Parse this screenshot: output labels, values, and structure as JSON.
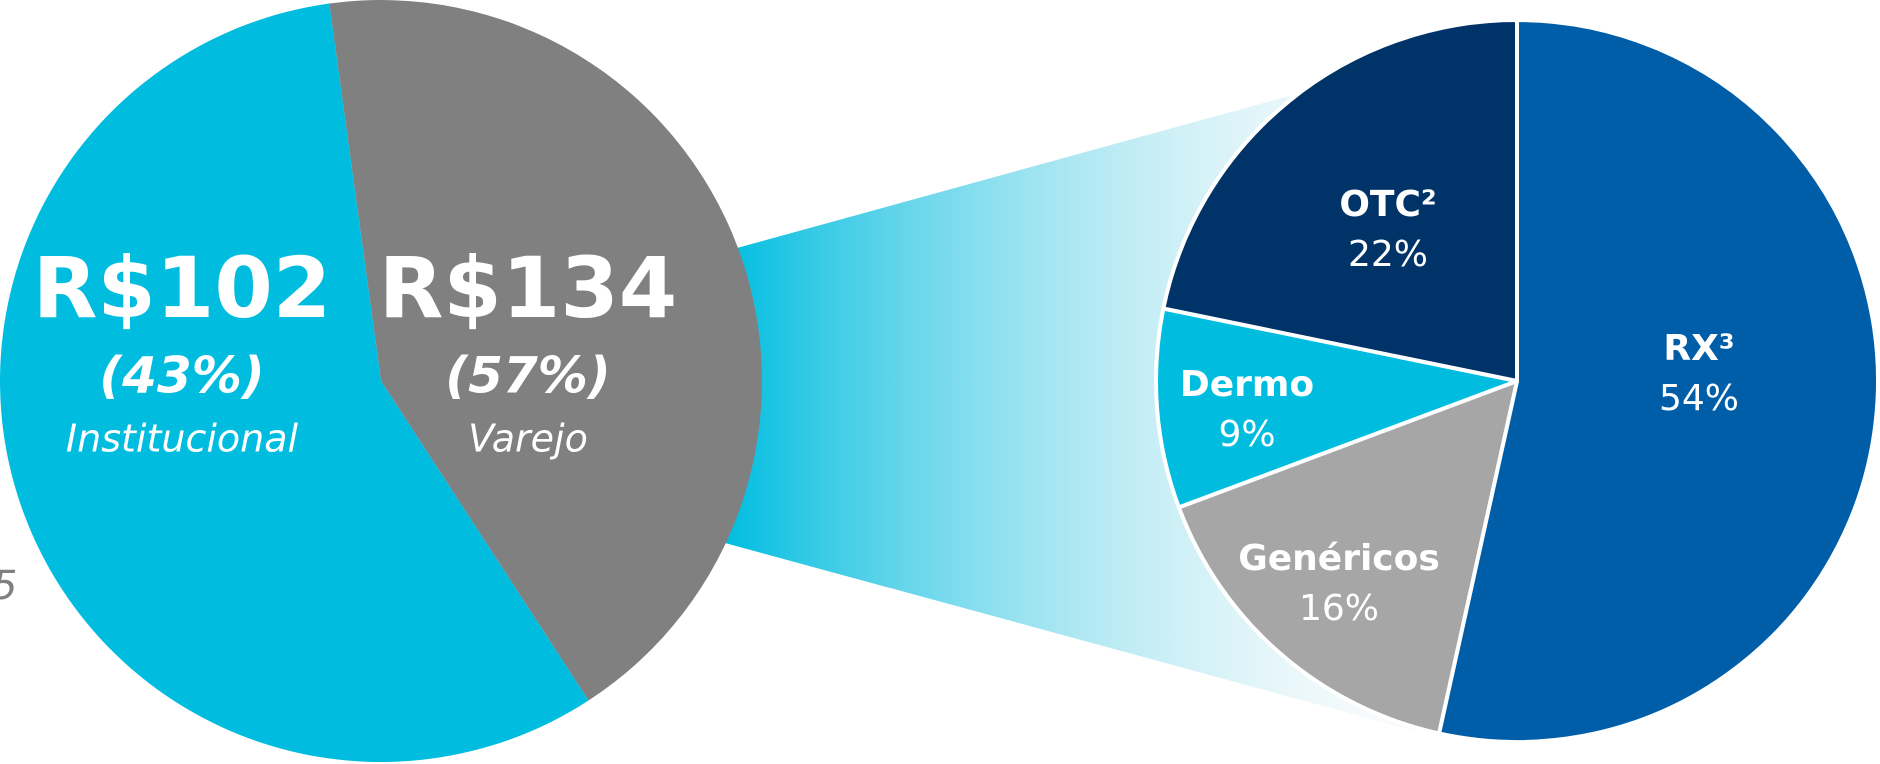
{
  "chart_data": [
    {
      "type": "pie",
      "categories": [
        "Institucional",
        "Varejo"
      ],
      "values": [
        43,
        57
      ],
      "value_labels": [
        "(43%)",
        "(57%)"
      ],
      "amount_labels": [
        "R$102",
        "R$134"
      ],
      "colors": [
        "#808080",
        "#00bde0"
      ]
    },
    {
      "type": "pie",
      "categories": [
        "RX³",
        "Genéricos",
        "Dermo",
        "OTC²"
      ],
      "values": [
        54,
        16,
        9,
        22
      ],
      "value_labels": [
        "54%",
        "16%",
        "9%",
        "22%"
      ],
      "colors": [
        "#005ea8",
        "#a6a6a6",
        "#00bde0",
        "#003368"
      ]
    }
  ],
  "edge_text": "5"
}
